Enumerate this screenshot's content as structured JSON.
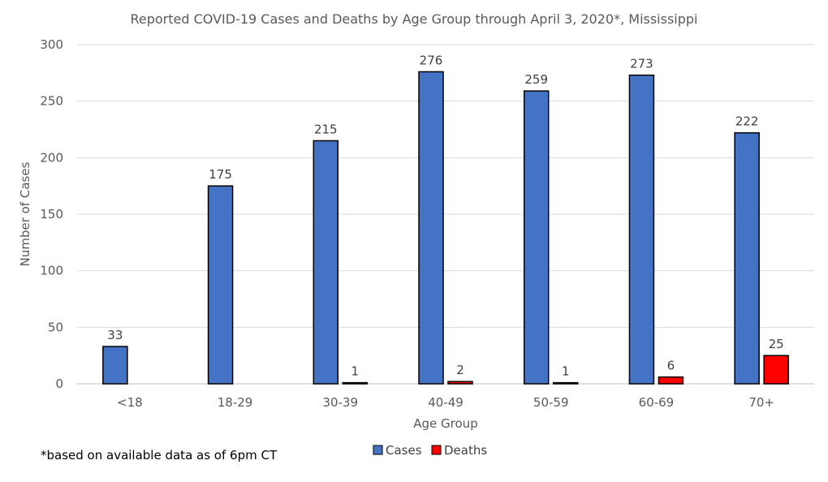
{
  "chart_data": {
    "type": "bar",
    "title": "Reported COVID-19 Cases and Deaths by Age Group through April 3, 2020*, Mississippi",
    "xlabel": "Age Group",
    "ylabel": "Number of Cases",
    "ylim": [
      0,
      300
    ],
    "yticks": [
      0,
      50,
      100,
      150,
      200,
      250,
      300
    ],
    "grid": true,
    "legend_position": "bottom",
    "categories": [
      "<18",
      "18-29",
      "30-39",
      "40-49",
      "50-59",
      "60-69",
      "70+"
    ],
    "series": [
      {
        "name": "Cases",
        "color": "#4472c4",
        "values": [
          33,
          175,
          215,
          276,
          259,
          273,
          222
        ],
        "labels": [
          "33",
          "175",
          "215",
          "276",
          "259",
          "273",
          "222"
        ]
      },
      {
        "name": "Deaths",
        "color": "#ff0000",
        "values": [
          0,
          0,
          1,
          2,
          1,
          6,
          25
        ],
        "labels": [
          "",
          "",
          "1",
          "2",
          "1",
          "6",
          "25"
        ]
      }
    ],
    "footnote": "*based on available data as of 6pm CT"
  }
}
